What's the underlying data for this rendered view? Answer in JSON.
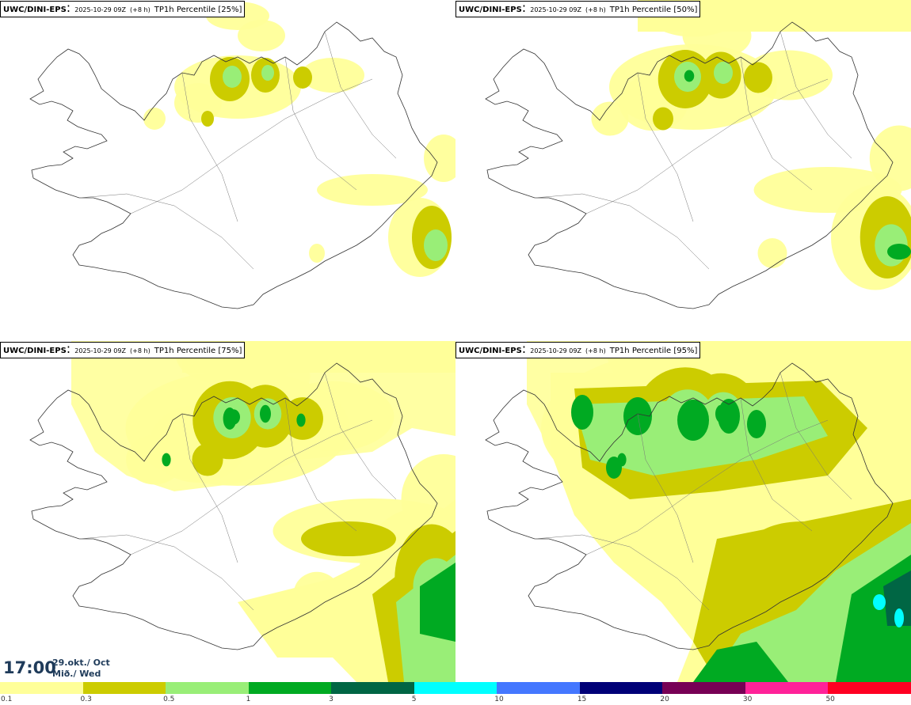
{
  "panels": [
    {
      "source": "UWC/DINI-EPS",
      "run": "2025-10-29 09Z",
      "lead": "(+8 h)",
      "field": "TP1h Percentile [25%]",
      "intensity": 1
    },
    {
      "source": "UWC/DINI-EPS",
      "run": "2025-10-29 09Z",
      "lead": "(+8 h)",
      "field": "TP1h Percentile [50%]",
      "intensity": 2
    },
    {
      "source": "UWC/DINI-EPS",
      "run": "2025-10-29 09Z",
      "lead": "(+8 h)",
      "field": "TP1h Percentile [75%]",
      "intensity": 3
    },
    {
      "source": "UWC/DINI-EPS",
      "run": "2025-10-29 09Z",
      "lead": "(+8 h)",
      "field": "TP1h Percentile [95%]",
      "intensity": 4
    }
  ],
  "valid_time": {
    "hour": "17:00",
    "date_line1": "29.okt./ Oct",
    "date_line2": "Mið./ Wed"
  },
  "legend": {
    "labels": [
      "0.1",
      "0.3",
      "0.5",
      "1",
      "3",
      "5",
      "10",
      "15",
      "20",
      "30",
      "50"
    ],
    "colors": [
      "#ffff99",
      "#cccc00",
      "#99ee77",
      "#00aa22",
      "#006644",
      "#00ffff",
      "#4477ff",
      "#000077",
      "#770055",
      "#ff2299",
      "#ff0022"
    ]
  }
}
